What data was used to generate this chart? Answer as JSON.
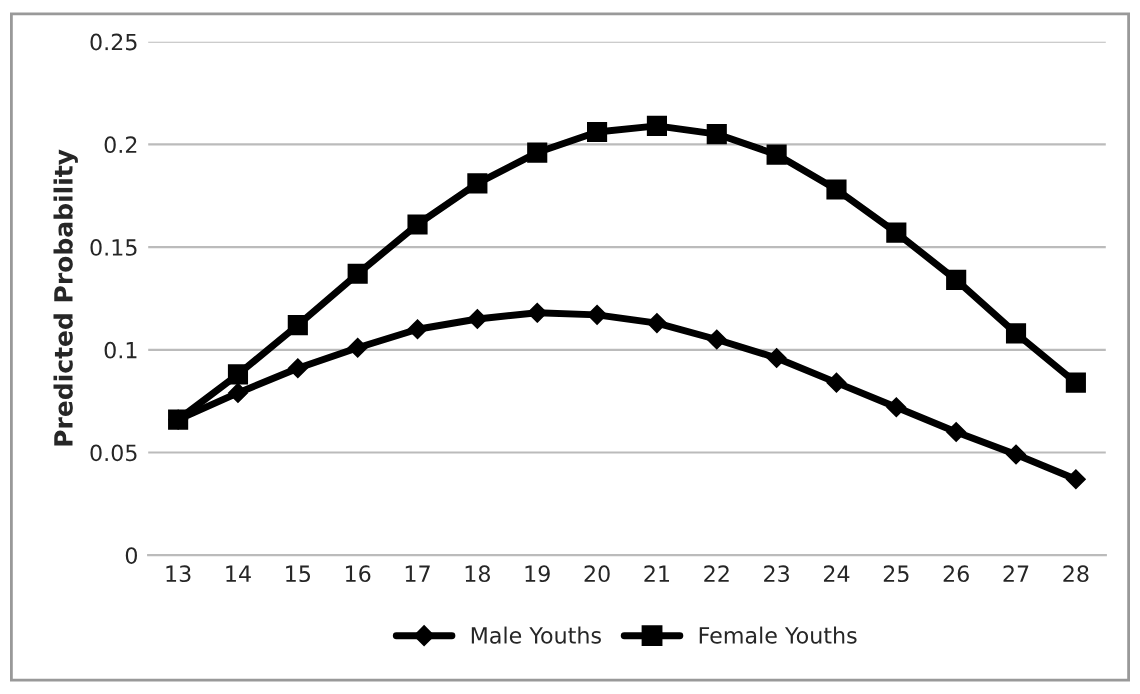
{
  "chart_data": {
    "type": "line",
    "ylabel": "Predicted Probability",
    "categories": [
      "13",
      "14",
      "15",
      "16",
      "17",
      "18",
      "19",
      "20",
      "21",
      "22",
      "23",
      "24",
      "25",
      "26",
      "27",
      "28"
    ],
    "series": [
      {
        "name": "Male Youths",
        "color": "#000000",
        "marker": "diamond",
        "values": [
          0.066,
          0.079,
          0.091,
          0.101,
          0.11,
          0.115,
          0.118,
          0.117,
          0.113,
          0.105,
          0.096,
          0.084,
          0.072,
          0.06,
          0.049,
          0.037
        ]
      },
      {
        "name": "Female Youths",
        "color": "#000000",
        "marker": "square",
        "values": [
          0.066,
          0.088,
          0.112,
          0.137,
          0.161,
          0.181,
          0.196,
          0.206,
          0.209,
          0.205,
          0.195,
          0.178,
          0.157,
          0.134,
          0.108,
          0.084
        ]
      }
    ],
    "ylim": [
      0,
      0.25
    ],
    "yticks": [
      0,
      0.05,
      0.1,
      0.15,
      0.2,
      0.25
    ],
    "grid": "y",
    "legend": "bottom",
    "line_style": "solid"
  }
}
